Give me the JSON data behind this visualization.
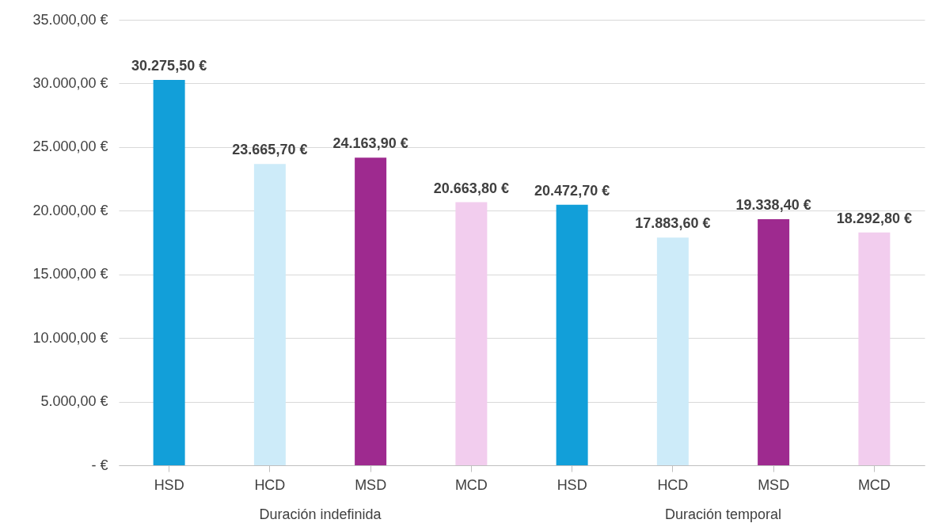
{
  "chart_data": {
    "type": "bar",
    "categories": [
      "HSD",
      "HCD",
      "MSD",
      "MCD",
      "HSD",
      "HCD",
      "MSD",
      "MCD"
    ],
    "values": [
      30275.5,
      23665.7,
      24163.9,
      20663.8,
      20472.7,
      17883.6,
      19338.4,
      18292.8
    ],
    "colors": [
      "#129fd9",
      "#cdebf9",
      "#9e2a8f",
      "#f2cdee",
      "#129fd9",
      "#cdebf9",
      "#9e2a8f",
      "#f2cdee"
    ],
    "value_labels": [
      "30.275,50 €",
      "23.665,70 €",
      "24.163,90 €",
      "20.663,80 €",
      "20.472,70 €",
      "17.883,60 €",
      "19.338,40 €",
      "18.292,80 €"
    ],
    "ylim": [
      0,
      35000
    ],
    "yticks": [
      {
        "value": 0,
        "label": "-  €"
      },
      {
        "value": 5000,
        "label": "5.000,00 €"
      },
      {
        "value": 10000,
        "label": "10.000,00 €"
      },
      {
        "value": 15000,
        "label": "15.000,00 €"
      },
      {
        "value": 20000,
        "label": "20.000,00 €"
      },
      {
        "value": 25000,
        "label": "25.000,00 €"
      },
      {
        "value": 30000,
        "label": "30.000,00 €"
      },
      {
        "value": 35000,
        "label": "35.000,00 €"
      }
    ],
    "grid": "y",
    "annotations": [
      "Duración indefinida",
      "Duración temporal"
    ]
  }
}
